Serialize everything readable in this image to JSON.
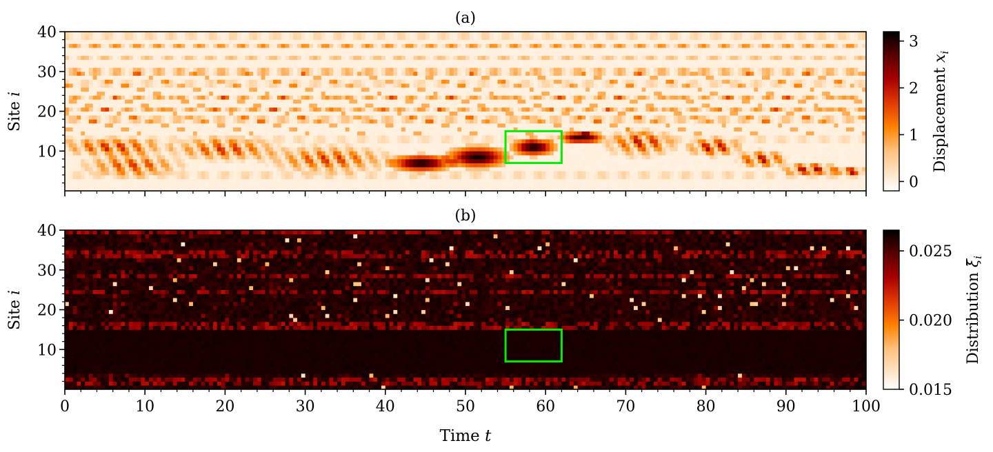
{
  "figure": {
    "panel_a_title": "(a)",
    "panel_b_title": "(b)",
    "ylabel": "Site",
    "ylabel_var": "i",
    "xlabel": "Time",
    "xlabel_var": "t",
    "cbar_a_label": "Displacement",
    "cbar_a_var": "x",
    "cbar_a_sub": "i",
    "cbar_b_label": "Distribution",
    "cbar_b_var": "ξ̄",
    "cbar_b_sub": "i"
  },
  "chart_data": [
    {
      "type": "heatmap",
      "title": "(a)",
      "xlabel": "Time t",
      "ylabel": "Site i",
      "xlim": [
        0,
        100
      ],
      "ylim": [
        0,
        40
      ],
      "xticks": [
        0,
        10,
        20,
        30,
        40,
        50,
        60,
        70,
        80,
        90,
        100
      ],
      "yticks": [
        10,
        20,
        30,
        40
      ],
      "colorbar": {
        "label": "Displacement x_i",
        "range": [
          -0.2,
          3.2
        ],
        "ticks": [
          0,
          1,
          2,
          3
        ],
        "colormap": "gist_heat_r"
      },
      "highlight_box": {
        "x": [
          55,
          62
        ],
        "y": [
          7,
          15
        ],
        "color": "#00ee00"
      },
      "features": {
        "horizontal_bands": [
          {
            "site": 39,
            "strength": 0.7
          },
          {
            "site": 36.5,
            "strength": 1.0
          },
          {
            "site": 33.5,
            "strength": 0.6
          },
          {
            "site": 30,
            "strength": 1.4
          },
          {
            "site": 27,
            "strength": 0.7
          },
          {
            "site": 23.5,
            "strength": 0.9
          },
          {
            "site": 20.5,
            "strength": 0.9
          },
          {
            "site": 18,
            "strength": 1.1
          },
          {
            "site": 13,
            "strength": 0.6
          },
          {
            "site": 4,
            "strength": 0.7
          }
        ],
        "breathers": [
          {
            "t": [
              0,
              12
            ],
            "site": [
              9,
              13
            ],
            "amp": 2.0
          },
          {
            "t": [
              3,
              14
            ],
            "site": [
              4,
              9
            ],
            "amp": 1.8
          },
          {
            "t": [
              14,
              26
            ],
            "site": [
              8,
              13
            ],
            "amp": 1.9
          },
          {
            "t": [
              26,
              40
            ],
            "site": [
              5,
              11
            ],
            "amp": 1.8
          },
          {
            "t": [
              41,
              48
            ],
            "site": [
              5,
              9
            ],
            "amp": 3.0
          },
          {
            "t": [
              48,
              55
            ],
            "site": [
              6,
              11
            ],
            "amp": 3.0
          },
          {
            "t": [
              56,
              61
            ],
            "site": [
              9,
              13
            ],
            "amp": 3.0
          },
          {
            "t": [
              62,
              67
            ],
            "site": [
              12,
              15
            ],
            "amp": 2.7
          },
          {
            "t": [
              68,
              76
            ],
            "site": [
              9,
              15
            ],
            "amp": 1.9
          },
          {
            "t": [
              78,
              84
            ],
            "site": [
              9,
              13
            ],
            "amp": 2.4
          },
          {
            "t": [
              84,
              90
            ],
            "site": [
              6,
              10
            ],
            "amp": 2.2
          },
          {
            "t": [
              90,
              96
            ],
            "site": [
              4,
              7
            ],
            "amp": 2.5
          },
          {
            "t": [
              96,
              100
            ],
            "site": [
              4,
              6
            ],
            "amp": 2.4
          }
        ]
      }
    },
    {
      "type": "heatmap",
      "title": "(b)",
      "xlabel": "Time t",
      "ylabel": "Site i",
      "xlim": [
        0,
        100
      ],
      "ylim": [
        0,
        40
      ],
      "xticks": [
        0,
        10,
        20,
        30,
        40,
        50,
        60,
        70,
        80,
        90,
        100
      ],
      "yticks": [
        10,
        20,
        30,
        40
      ],
      "colorbar": {
        "label": "Distribution ξ̄_i",
        "range": [
          0.015,
          0.0265
        ],
        "ticks": [
          0.015,
          0.02,
          0.025
        ],
        "colormap": "gist_heat_r"
      },
      "highlight_box": {
        "x": [
          55,
          62
        ],
        "y": [
          7,
          15
        ],
        "color": "#00ee00"
      },
      "features": {
        "dominant_value": 0.0262,
        "bright_rows": [
          1.5,
          2.5,
          15.5,
          16.5,
          24.5,
          28.5,
          33.5,
          34.5,
          39.5
        ],
        "dark_region": {
          "t": [
            0,
            100
          ],
          "site": [
            4,
            15
          ]
        }
      }
    }
  ]
}
